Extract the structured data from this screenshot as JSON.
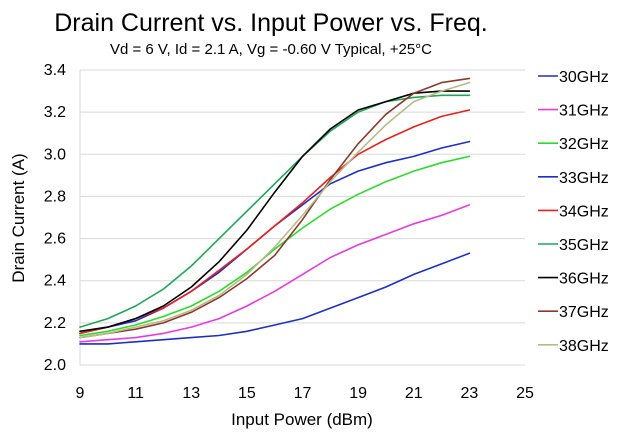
{
  "chart_data": {
    "type": "line",
    "title": "Drain Current vs. Input Power vs. Freq.",
    "subtitle": "Vd = 6 V, Id = 2.1 A, Vg = -0.60 V Typical, +25°C",
    "xlabel": "Input Power (dBm)",
    "ylabel": "Drain Current  (A)",
    "xlim": [
      9,
      25
    ],
    "ylim": [
      2.0,
      3.4
    ],
    "xticks": [
      9,
      11,
      13,
      15,
      17,
      19,
      21,
      23,
      25
    ],
    "yticks": [
      2.0,
      2.2,
      2.4,
      2.6,
      2.8,
      3.0,
      3.2,
      3.4
    ],
    "ytick_labels": [
      "2.0",
      "2.2",
      "2.4",
      "2.6",
      "2.8",
      "3.0",
      "3.2",
      "3.4"
    ],
    "grid": "horizontal",
    "legend_position": "right",
    "x": [
      9,
      10,
      11,
      12,
      13,
      14,
      15,
      16,
      17,
      18,
      19,
      20,
      21,
      22,
      23
    ],
    "series": [
      {
        "name": "30GHz",
        "color": "#1c2fc8",
        "values": [
          2.1,
          2.1,
          2.11,
          2.12,
          2.13,
          2.14,
          2.16,
          2.19,
          2.22,
          2.27,
          2.32,
          2.37,
          2.43,
          2.48,
          2.53
        ]
      },
      {
        "name": "31GHz",
        "color": "#e83ae0",
        "values": [
          2.11,
          2.12,
          2.13,
          2.15,
          2.18,
          2.22,
          2.28,
          2.35,
          2.43,
          2.51,
          2.57,
          2.62,
          2.67,
          2.71,
          2.76
        ]
      },
      {
        "name": "32GHz",
        "color": "#2bdc2b",
        "values": [
          2.14,
          2.16,
          2.19,
          2.23,
          2.28,
          2.35,
          2.44,
          2.55,
          2.65,
          2.74,
          2.81,
          2.87,
          2.92,
          2.96,
          2.99
        ]
      },
      {
        "name": "33GHz",
        "color": "#1c2fc8",
        "values": [
          2.15,
          2.18,
          2.21,
          2.27,
          2.35,
          2.44,
          2.55,
          2.66,
          2.76,
          2.86,
          2.92,
          2.96,
          2.99,
          3.03,
          3.06
        ]
      },
      {
        "name": "34GHz",
        "color": "#e8221b",
        "values": [
          2.15,
          2.18,
          2.22,
          2.27,
          2.35,
          2.45,
          2.55,
          2.66,
          2.77,
          2.89,
          3.0,
          3.07,
          3.13,
          3.18,
          3.21
        ]
      },
      {
        "name": "35GHz",
        "color": "#1fa65a",
        "values": [
          2.18,
          2.22,
          2.28,
          2.36,
          2.47,
          2.6,
          2.73,
          2.86,
          2.99,
          3.11,
          3.2,
          3.25,
          3.27,
          3.28,
          3.28
        ]
      },
      {
        "name": "36GHz",
        "color": "#000000",
        "values": [
          2.16,
          2.18,
          2.22,
          2.28,
          2.37,
          2.49,
          2.64,
          2.82,
          2.99,
          3.12,
          3.21,
          3.25,
          3.29,
          3.3,
          3.3
        ]
      },
      {
        "name": "37GHz",
        "color": "#8b3b2c",
        "values": [
          2.13,
          2.15,
          2.17,
          2.2,
          2.25,
          2.32,
          2.41,
          2.52,
          2.69,
          2.88,
          3.05,
          3.19,
          3.29,
          3.34,
          3.36
        ]
      },
      {
        "name": "38GHz",
        "color": "#b9b98a",
        "values": [
          2.13,
          2.15,
          2.18,
          2.21,
          2.26,
          2.33,
          2.43,
          2.56,
          2.71,
          2.87,
          3.01,
          3.14,
          3.25,
          3.3,
          3.34
        ]
      }
    ]
  }
}
